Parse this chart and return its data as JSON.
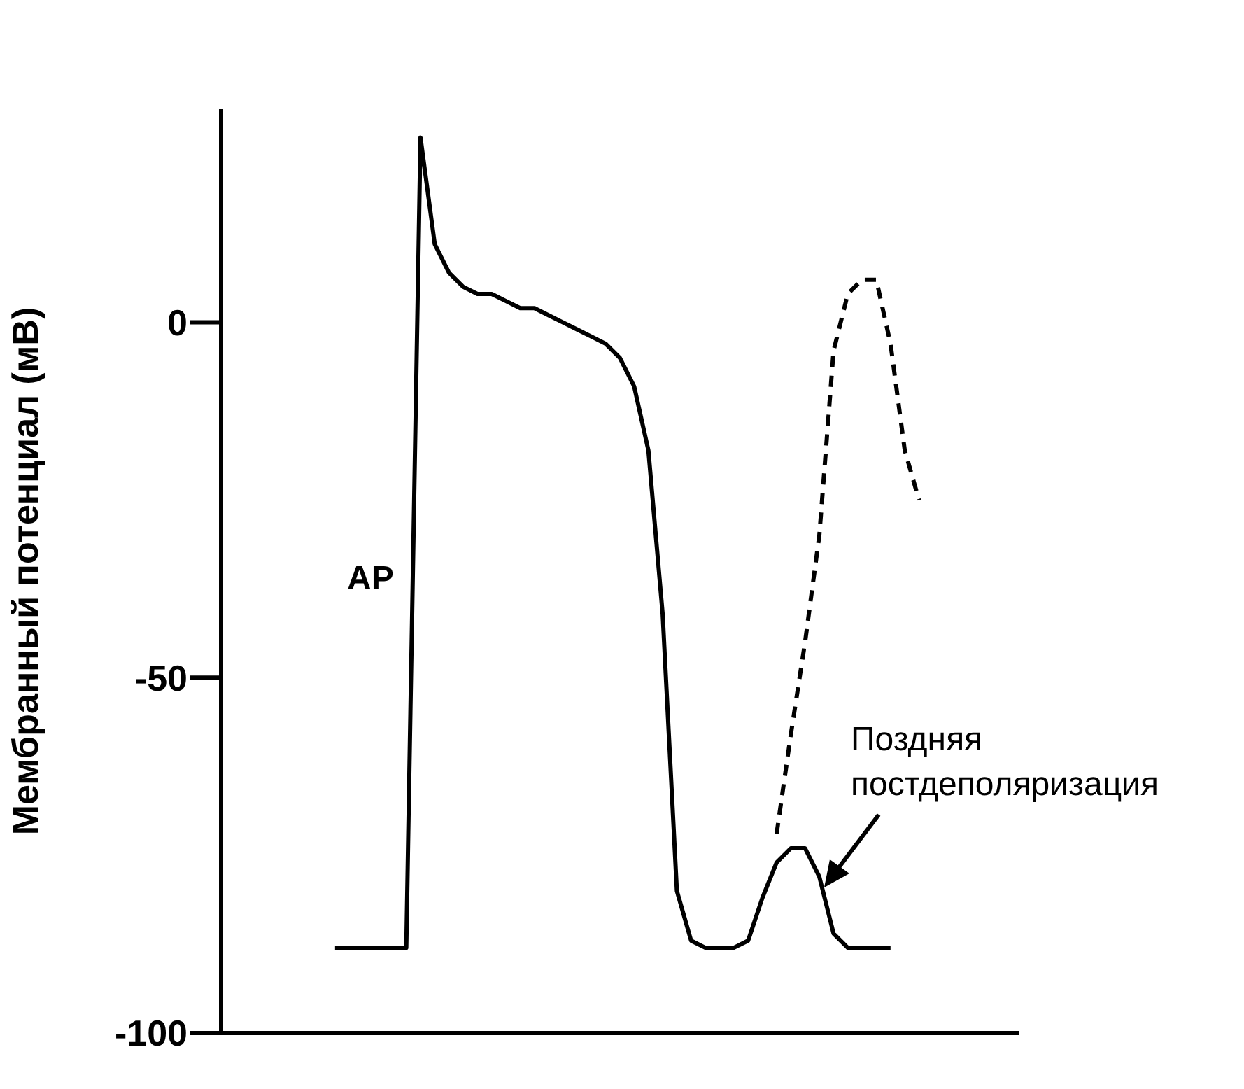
{
  "chart_data": {
    "type": "line",
    "ylabel": "Мембранный потенциал (мВ)",
    "categories": [
      null,
      null,
      null,
      null,
      null,
      null,
      null,
      null,
      null,
      null,
      null,
      null,
      null,
      null,
      null,
      null,
      null,
      null,
      null,
      null,
      null,
      null,
      null,
      null,
      null,
      null,
      null,
      null,
      null,
      null,
      null,
      null,
      null,
      null,
      null,
      null,
      null,
      null,
      null,
      null,
      null,
      null,
      null,
      null,
      null,
      null,
      null,
      null,
      null,
      null,
      null,
      null,
      null,
      null,
      null,
      null,
      null
    ],
    "series": [
      {
        "color": "#000000",
        "line_style": "solid",
        "values": [
          null,
          null,
          null,
          null,
          null,
          null,
          null,
          null,
          -88,
          -88,
          -88,
          -88,
          -88,
          -88,
          26,
          11,
          7,
          5,
          4,
          4,
          3,
          2,
          2,
          1,
          0,
          -1,
          -2,
          -3,
          -5,
          -9,
          -18,
          -41,
          -80,
          -87,
          -88,
          -88,
          -88,
          -87,
          -81,
          -76,
          -74,
          -74,
          -78,
          -86,
          -88,
          -88,
          -88,
          -88,
          null,
          null,
          null,
          null,
          null,
          null,
          null,
          null,
          null
        ]
      },
      {
        "color": "#000000",
        "line_style": "dashed",
        "values": [
          null,
          null,
          null,
          null,
          null,
          null,
          null,
          null,
          null,
          null,
          null,
          null,
          null,
          null,
          null,
          null,
          null,
          null,
          null,
          null,
          null,
          null,
          null,
          null,
          null,
          null,
          null,
          null,
          null,
          null,
          null,
          null,
          null,
          null,
          null,
          null,
          null,
          null,
          null,
          -72,
          -58,
          -45,
          -30,
          -4,
          4,
          6,
          6,
          -3,
          -18,
          -25,
          null,
          null,
          null,
          null,
          null,
          null,
          null
        ]
      }
    ],
    "ylim": [
      -100,
      30
    ],
    "yticks": [
      0,
      -50,
      -100
    ],
    "tick_labels": "y",
    "grid": false,
    "marker": "none",
    "annotations": [
      "AP",
      "Поздняя\nпостдеполяризация"
    ]
  }
}
